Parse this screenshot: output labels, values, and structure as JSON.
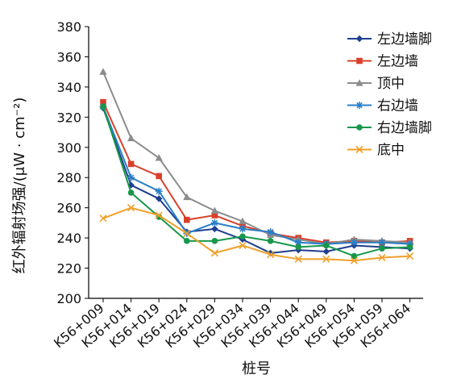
{
  "chart_data": {
    "type": "line",
    "title": "",
    "xlabel": "桩号",
    "ylabel": "红外辐射场强/(μW · cm⁻²)",
    "ylim": [
      200,
      380
    ],
    "yticks": [
      200,
      220,
      240,
      260,
      280,
      300,
      320,
      340,
      360,
      380
    ],
    "grid": false,
    "legend": "right",
    "categories": [
      "K56+009",
      "K56+014",
      "K56+019",
      "K56+024",
      "K56+029",
      "K56+034",
      "K56+039",
      "K56+044",
      "K56+049",
      "K56+054",
      "K56+059",
      "K56+064"
    ],
    "series": [
      {
        "name": "左边墙脚",
        "color": "#1f3f8f",
        "marker": "diamond",
        "values": [
          326,
          275,
          266,
          244,
          246,
          239,
          230,
          232,
          231,
          235,
          234,
          233
        ]
      },
      {
        "name": "左边墙",
        "color": "#d9402a",
        "marker": "square",
        "values": [
          330,
          289,
          281,
          252,
          255,
          248,
          243,
          240,
          237,
          238,
          237,
          238
        ]
      },
      {
        "name": "顶中",
        "color": "#8c8c8c",
        "marker": "triangle",
        "values": [
          350,
          306,
          293,
          267,
          258,
          251,
          242,
          239,
          236,
          239,
          238,
          237
        ]
      },
      {
        "name": "右边墙",
        "color": "#2a7fc7",
        "marker": "star",
        "values": [
          327,
          280,
          271,
          243,
          250,
          246,
          244,
          237,
          236,
          237,
          237,
          236
        ]
      },
      {
        "name": "右边墙脚",
        "color": "#18974a",
        "marker": "circle",
        "values": [
          327,
          270,
          254,
          238,
          238,
          241,
          238,
          234,
          235,
          228,
          233,
          234
        ]
      },
      {
        "name": "底中",
        "color": "#f0a02a",
        "marker": "x",
        "values": [
          253,
          260,
          255,
          243,
          230,
          235,
          229,
          226,
          226,
          225,
          227,
          228
        ]
      }
    ]
  }
}
